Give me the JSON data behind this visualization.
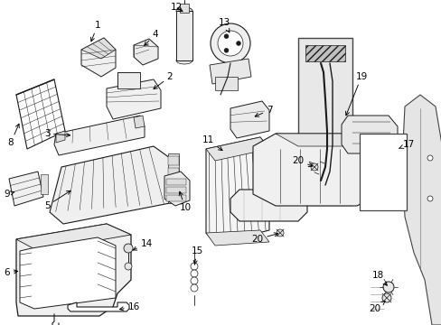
{
  "bg_color": "#ffffff",
  "line_color": "#1a1a1a",
  "figsize": [
    4.89,
    3.6
  ],
  "dpi": 100,
  "label_fontsize": 7.0
}
